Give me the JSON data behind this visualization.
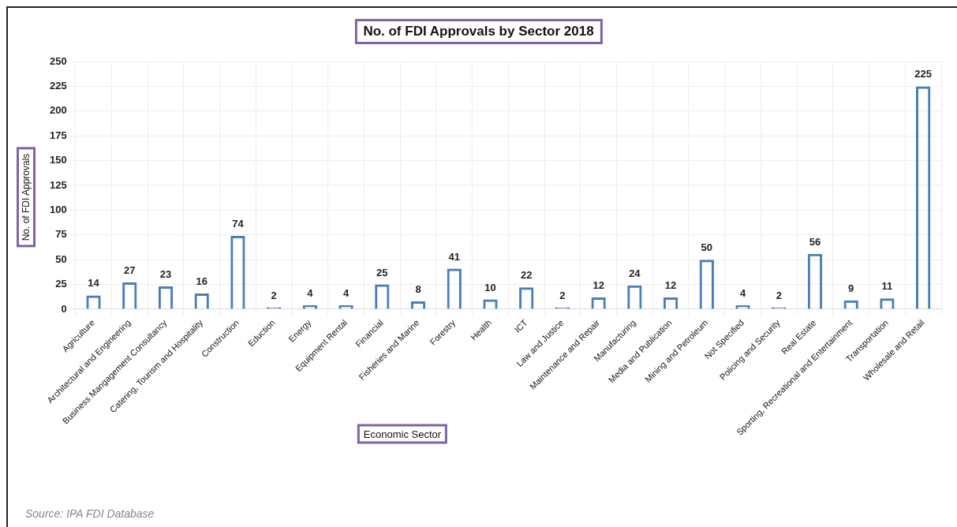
{
  "chart_data": {
    "type": "bar",
    "title": "No. of FDI Approvals by Sector 2018",
    "xlabel": "Economic Sector",
    "ylabel": "No. of FDI Approvals",
    "categories": [
      "Agriculture",
      "Architectural and Engineering",
      "Business Mangagement Consultancy",
      "Catering, Tourism and Hospitality",
      "Construction",
      "Eduction",
      "Energy",
      "Equipment Rental",
      "Financial",
      "Fisheries and Marine",
      "Forestry",
      "Health",
      "ICT",
      "Law and Justice",
      "Maintenance and Repair",
      "Manufacturing",
      "Media and Publication",
      "Mining and Petroleum",
      "Not Specified",
      "Policing and Security",
      "Real Estate",
      "Sporting, Recreational and Entertainment",
      "Transportation",
      "Wholesale and Retail"
    ],
    "values": [
      14,
      27,
      23,
      16,
      74,
      2,
      4,
      4,
      25,
      8,
      41,
      10,
      22,
      2,
      12,
      24,
      12,
      50,
      4,
      2,
      56,
      9,
      11,
      225
    ],
    "color": "#4a7ebb",
    "ylim": [
      0,
      250
    ],
    "yticks": [
      0,
      25,
      50,
      75,
      100,
      125,
      150,
      175,
      200,
      225,
      250
    ],
    "grid": true,
    "data_labels": true,
    "legend": false,
    "annotations": [
      "Source: IPA FDI Database"
    ]
  }
}
